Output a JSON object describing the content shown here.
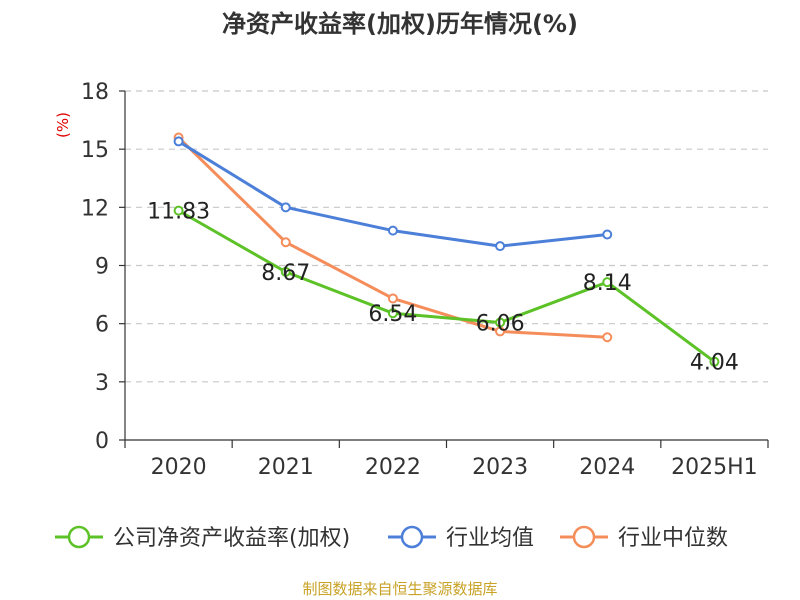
{
  "chart_data": {
    "type": "line",
    "title": "净资产收益率(加权)历年情况(%)",
    "ylabel": "(%)",
    "categories": [
      "2020",
      "2021",
      "2022",
      "2023",
      "2024",
      "2025H1"
    ],
    "ylim": [
      0,
      18
    ],
    "yticks": [
      0,
      3,
      6,
      9,
      12,
      15,
      18
    ],
    "grid": true,
    "legend_position": "bottom",
    "series": [
      {
        "name": "公司净资产收益率(加权)",
        "color": "#5cc227",
        "values": [
          11.83,
          8.67,
          6.54,
          6.06,
          8.14,
          4.04
        ],
        "labels": [
          "11.83",
          "8.67",
          "6.54",
          "6.06",
          "8.14",
          "4.04"
        ]
      },
      {
        "name": "行业均值",
        "color": "#4c7fd8",
        "values": [
          15.4,
          12.0,
          10.8,
          10.0,
          10.6,
          null
        ]
      },
      {
        "name": "行业中位数",
        "color": "#f58d5b",
        "values": [
          15.6,
          10.2,
          7.3,
          5.6,
          5.3,
          null
        ]
      }
    ]
  },
  "source": "制图数据来自恒生聚源数据库"
}
